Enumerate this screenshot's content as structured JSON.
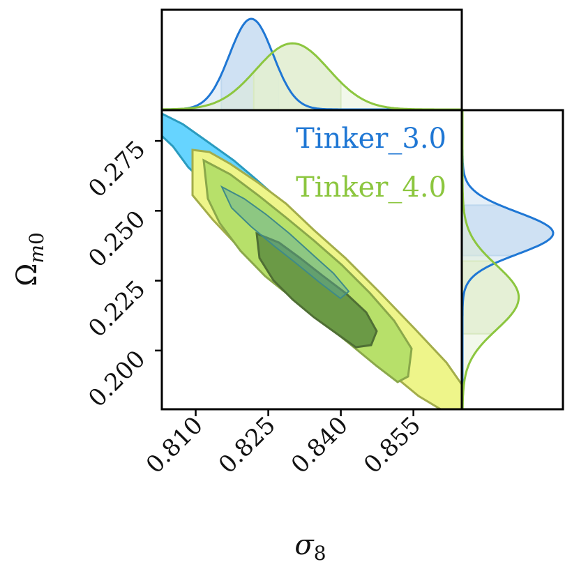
{
  "chart_data": {
    "type": "corner",
    "xlabel": "σ₈",
    "ylabel": "Ω_m0",
    "xlim": [
      0.803,
      0.865
    ],
    "ylim": [
      0.179,
      0.286
    ],
    "xticks": [
      "0.810",
      "0.825",
      "0.840",
      "0.855"
    ],
    "xtick_values": [
      0.81,
      0.825,
      0.84,
      0.855
    ],
    "yticks": [
      "0.200",
      "0.225",
      "0.250",
      "0.275"
    ],
    "ytick_values": [
      0.2,
      0.225,
      0.25,
      0.275
    ],
    "legend_placement": "top-right",
    "series": [
      {
        "name": "Tinker_3.0",
        "color": "#1f77d4",
        "fill_light": "#cfe1f3",
        "fill_contour_outer": "#66d4ff",
        "edge_contour": "#2a9bbf",
        "sigma8_peak": 0.8215,
        "sigma8_width": 0.0045,
        "sigma8_interval": [
          0.8153,
          0.8271
        ],
        "omega_m0_peak": 0.242,
        "omega_m0_width": 0.0075,
        "omega_m0_interval": [
          0.234,
          0.252
        ]
      },
      {
        "name": "Tinker_4.0",
        "color": "#8cc63f",
        "fill_light": "#e3efd2",
        "fill_contour_outer": "#eef58a",
        "fill_contour_mid": "#b7e06a",
        "fill_contour_inner": "#6b9a46",
        "edge_contour": "#a3ad4a",
        "sigma8_peak": 0.83,
        "sigma8_width": 0.0075,
        "sigma8_interval": [
          0.822,
          0.84
        ],
        "omega_m0_peak": 0.219,
        "omega_m0_width": 0.0115,
        "omega_m0_interval": [
          0.206,
          0.232
        ]
      }
    ]
  }
}
